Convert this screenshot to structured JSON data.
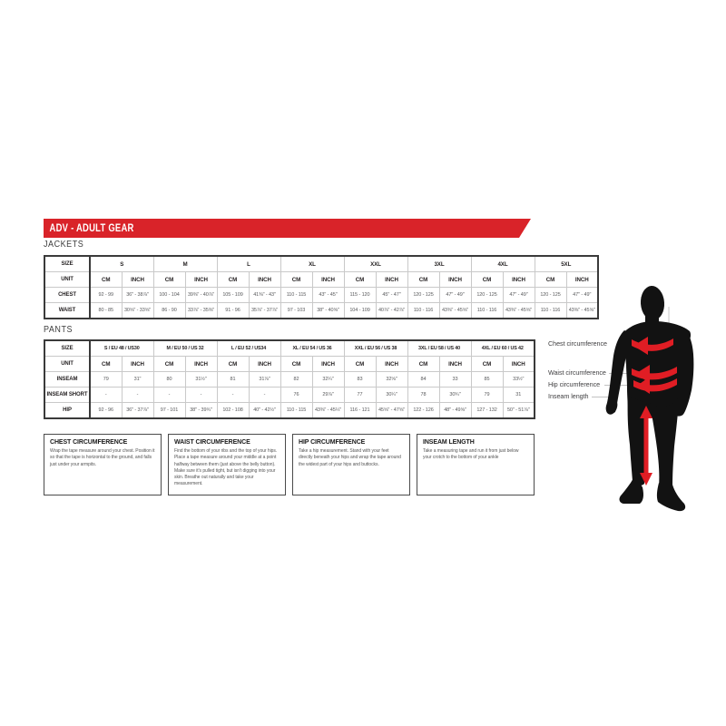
{
  "banner": {
    "title": "ADV - ADULT GEAR"
  },
  "colors": {
    "accent_red": "#d92329",
    "band_red": "#e01d24",
    "figure_black": "#121212",
    "text_dark": "#231f20",
    "text_gray": "#58595b",
    "border_dark": "#3a3a3a",
    "border_light": "#c9c9c9",
    "leader_gray": "#c2c2c2"
  },
  "jackets": {
    "section_label": "JACKETS",
    "corner_label": "SIZE",
    "unit_label": "UNIT",
    "cm_label": "CM",
    "inch_label": "INCH",
    "sizes": [
      "S",
      "M",
      "L",
      "XL",
      "XXL",
      "3XL",
      "4XL",
      "5XL"
    ],
    "rows": [
      {
        "label": "CHEST",
        "cm": [
          "92 - 99",
          "100 - 104",
          "105 - 109",
          "110 - 115",
          "115 - 120",
          "120 - 125",
          "120 - 125",
          "120 - 125"
        ],
        "inch": [
          "36\" - 38⅞\"",
          "39⅜\" - 40⅞\"",
          "41⅜\" - 43\"",
          "43\" - 45\"",
          "45\" - 47\"",
          "47\" - 49\"",
          "47\" - 49\"",
          "47\" - 49\""
        ]
      },
      {
        "label": "WAIST",
        "cm": [
          "80 - 85",
          "86 - 90",
          "91 - 96",
          "97 - 103",
          "104 - 109",
          "110 - 116",
          "110 - 116",
          "110 - 116"
        ],
        "inch": [
          "30⅝\" - 33⅝\"",
          "33⅞\" - 35⅜\"",
          "35⅞\" - 37⅞\"",
          "38\" - 40⅝\"",
          "40⅞\" - 42⅞\"",
          "43⅜\" - 45⅝\"",
          "43⅜\" - 45⅝\"",
          "43⅜\" - 45⅝\""
        ]
      }
    ]
  },
  "pants": {
    "section_label": "PANTS",
    "corner_label": "SIZE",
    "unit_label": "UNIT",
    "cm_label": "CM",
    "inch_label": "INCH",
    "sizes": [
      "S / EU 48 / US30",
      "M / EU 50 / US 32",
      "L / EU 52 / US34",
      "XL / EU 54 / US 36",
      "XXL / EU 56 / US 38",
      "3XL / EU 58 / US 40",
      "4XL / EU 60 / US 42"
    ],
    "rows": [
      {
        "label": "INSEAM",
        "cm": [
          "79",
          "80",
          "81",
          "82",
          "83",
          "84",
          "85"
        ],
        "inch": [
          "31\"",
          "31½\"",
          "31⅞\"",
          "32¼\"",
          "32⅝\"",
          "33",
          "33½\""
        ]
      },
      {
        "label": "INSEAM SHORT",
        "cm": [
          "-",
          "-",
          "-",
          "76",
          "77",
          "78",
          "79"
        ],
        "inch": [
          "-",
          "-",
          "-",
          "29⅞\"",
          "30¼\"",
          "30¾\"",
          "31"
        ]
      },
      {
        "label": "HIP",
        "cm": [
          "92 - 96",
          "97 - 101",
          "102 - 108",
          "110 - 115",
          "116 - 121",
          "122 - 126",
          "127 - 132"
        ],
        "inch": [
          "36\" - 37⅞\"",
          "38\" - 39¾\"",
          "40\" - 42½\"",
          "43⅜\" - 45¼\"",
          "45⅝\" - 47⅝\"",
          "48\" - 49⅝\"",
          "50\" - 51⅞\""
        ]
      }
    ]
  },
  "instructions": [
    {
      "title": "CHEST CIRCUMFERENCE",
      "body": "Wrap the tape measure around your chest. Position it so that the tape is horizontal to the ground, and falls just under your armpits."
    },
    {
      "title": "WAIST CIRCUMFERENCE",
      "body": "Find the bottom of your ribs and the top of your hips. Place a tape measure around your middle at a point halfway between them (just above the belly button). Make sure it's pulled tight, but isn't digging into your skin. Breathe out naturally and take your measurement."
    },
    {
      "title": "HIP CIRCUMFERENCE",
      "body": "Take a hip measurement. Stand with your feet directly beneath your hips and wrap the tape around the widest part of your hips and buttocks."
    },
    {
      "title": "INSEAM LENGTH",
      "body": "Take a measuring tape and run it from just below your crotch to the bottom of your ankle"
    }
  ],
  "figure": {
    "labels": [
      "Chest circumference",
      "Waist circumference",
      "Hip circumference",
      "Inseam length"
    ]
  }
}
